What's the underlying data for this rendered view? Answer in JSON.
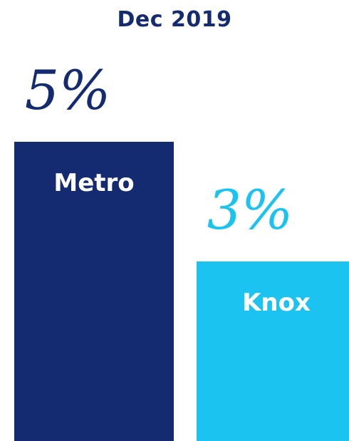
{
  "chart_data": {
    "type": "bar",
    "title": "Dec 2019",
    "xlabel": "",
    "ylabel": "",
    "unit": "%",
    "grid": false,
    "legend": "none",
    "categories": [
      "Metro",
      "Knox"
    ],
    "values": [
      5,
      3
    ],
    "value_labels": [
      "5%",
      "3%"
    ],
    "colors": [
      "#142b72",
      "#1bc3f0"
    ],
    "label_colors": [
      "#142b72",
      "#1bc3f0"
    ]
  }
}
